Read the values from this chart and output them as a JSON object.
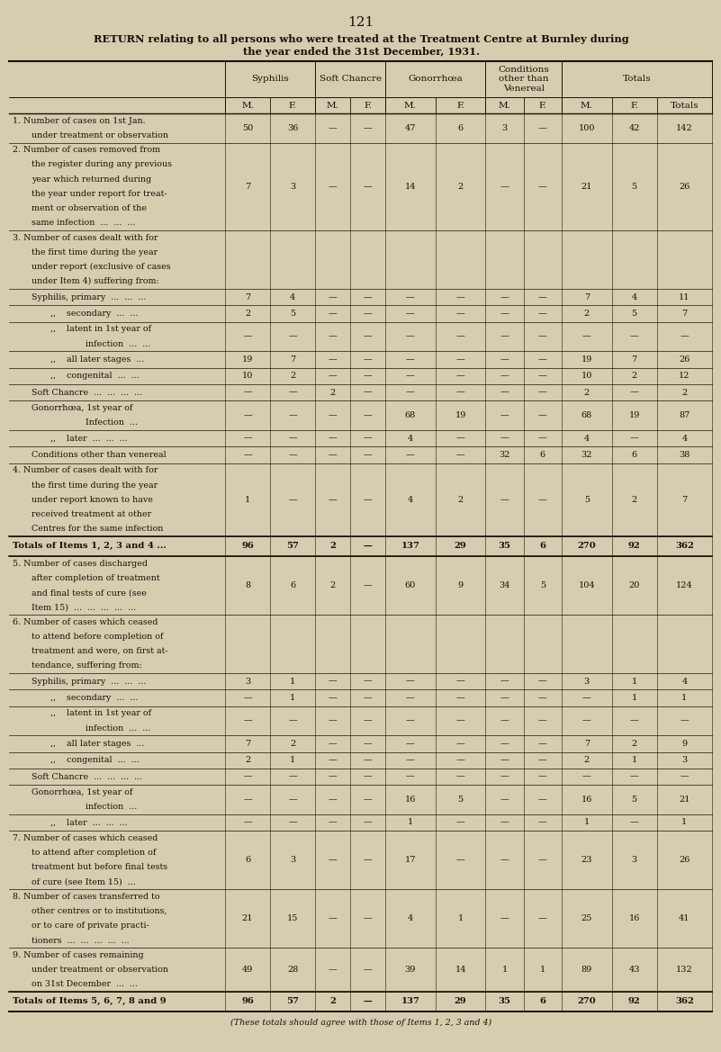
{
  "page_number": "121",
  "title_line1": "RETURN relating to all persons who were treated at the Treatment Centre at Burnley during",
  "title_line2": "the year ended the 31st December, 1931.",
  "bg_color": "#d6cdb0",
  "text_color": "#1a1008",
  "col_headers_row2": [
    "M.",
    "F.",
    "M.",
    "F.",
    "M.",
    "F.",
    "M.",
    "F.",
    "M.",
    "F.",
    "Totals"
  ],
  "group_labels": [
    "Syphilis",
    "Soft Chancre",
    "Gonorrhœa",
    "Conditions\nother than\nVenereal",
    "Totals"
  ],
  "rows": [
    {
      "label_parts": [
        [
          "1. Number of cases on 1st Jan.",
          0
        ],
        [
          "under treatment or observation",
          3
        ]
      ],
      "values": [
        "50",
        "36",
        "—",
        "—",
        "47",
        "6",
        "3",
        "—",
        "100",
        "42",
        "142"
      ],
      "bold": false,
      "separator_before": false,
      "separator_after": false
    },
    {
      "label_parts": [
        [
          "2. Number of cases removed from",
          0
        ],
        [
          "the register during any previous",
          3
        ],
        [
          "year which returned during",
          3
        ],
        [
          "the year under report for treat-",
          3
        ],
        [
          "ment or observation of the",
          3
        ],
        [
          "same infection  ...  ...  ...",
          3
        ]
      ],
      "values": [
        "7",
        "3",
        "—",
        "—",
        "14",
        "2",
        "—",
        "—",
        "21",
        "5",
        "26"
      ],
      "bold": false,
      "separator_before": false,
      "separator_after": false
    },
    {
      "label_parts": [
        [
          "3. Number of cases dealt with for",
          0
        ],
        [
          "the first time during the year",
          3
        ],
        [
          "under report (exclusive of cases",
          3
        ],
        [
          "under Item 4) suffering from:",
          3
        ]
      ],
      "values": [
        "",
        "",
        "",
        "",
        "",
        "",
        "",
        "",
        "",
        "",
        ""
      ],
      "bold": false,
      "separator_before": false,
      "separator_after": false
    },
    {
      "label_parts": [
        [
          "Syphilis, primary  ...  ...  ...",
          3
        ]
      ],
      "values": [
        "7",
        "4",
        "—",
        "—",
        "—",
        "—",
        "—",
        "—",
        "7",
        "4",
        "11"
      ],
      "bold": false,
      "separator_before": false,
      "separator_after": false
    },
    {
      "label_parts": [
        [
          ",,    secondary  ...  ...",
          6
        ]
      ],
      "values": [
        "2",
        "5",
        "—",
        "—",
        "—",
        "—",
        "—",
        "—",
        "2",
        "5",
        "7"
      ],
      "bold": false,
      "separator_before": false,
      "separator_after": false
    },
    {
      "label_parts": [
        [
          ",,    latent in 1st year of",
          6
        ],
        [
          "      infection  ...  ...",
          9
        ]
      ],
      "values": [
        "—",
        "—",
        "—",
        "—",
        "—",
        "—",
        "—",
        "—",
        "—",
        "—",
        "—"
      ],
      "bold": false,
      "separator_before": false,
      "separator_after": false
    },
    {
      "label_parts": [
        [
          ",,    all later stages  ...",
          6
        ]
      ],
      "values": [
        "19",
        "7",
        "—",
        "—",
        "—",
        "—",
        "—",
        "—",
        "19",
        "7",
        "26"
      ],
      "bold": false,
      "separator_before": false,
      "separator_after": false
    },
    {
      "label_parts": [
        [
          ",,    congenital  ...  ...",
          6
        ]
      ],
      "values": [
        "10",
        "2",
        "—",
        "—",
        "—",
        "—",
        "—",
        "—",
        "10",
        "2",
        "12"
      ],
      "bold": false,
      "separator_before": false,
      "separator_after": false
    },
    {
      "label_parts": [
        [
          "Soft Chancre  ...  ...  ...  ...",
          3
        ]
      ],
      "values": [
        "—",
        "—",
        "2",
        "—",
        "—",
        "—",
        "—",
        "—",
        "2",
        "—",
        "2"
      ],
      "bold": false,
      "separator_before": false,
      "separator_after": false
    },
    {
      "label_parts": [
        [
          "Gonorrhœa, 1st year of",
          3
        ],
        [
          "      Infection  ...",
          9
        ]
      ],
      "values": [
        "—",
        "—",
        "—",
        "—",
        "68",
        "19",
        "—",
        "—",
        "68",
        "19",
        "87"
      ],
      "bold": false,
      "separator_before": false,
      "separator_after": false
    },
    {
      "label_parts": [
        [
          ",,    later  ...  ...  ...",
          6
        ]
      ],
      "values": [
        "—",
        "—",
        "—",
        "—",
        "4",
        "—",
        "—",
        "—",
        "4",
        "—",
        "4"
      ],
      "bold": false,
      "separator_before": false,
      "separator_after": false
    },
    {
      "label_parts": [
        [
          "Conditions other than venereal",
          3
        ]
      ],
      "values": [
        "—",
        "—",
        "—",
        "—",
        "—",
        "—",
        "32",
        "6",
        "32",
        "6",
        "38"
      ],
      "bold": false,
      "separator_before": false,
      "separator_after": false
    },
    {
      "label_parts": [
        [
          "4. Number of cases dealt with for",
          0
        ],
        [
          "the first time during the year",
          3
        ],
        [
          "under report known to have",
          3
        ],
        [
          "received treatment at other",
          3
        ],
        [
          "Centres for the same infection",
          3
        ]
      ],
      "values": [
        "1",
        "—",
        "—",
        "—",
        "4",
        "2",
        "—",
        "—",
        "5",
        "2",
        "7"
      ],
      "bold": false,
      "separator_before": false,
      "separator_after": false
    },
    {
      "label_parts": [
        [
          "Totals of Items 1, 2, 3 and 4 ...",
          0
        ]
      ],
      "values": [
        "96",
        "57",
        "2",
        "—",
        "137",
        "29",
        "35",
        "6",
        "270",
        "92",
        "362"
      ],
      "bold": true,
      "separator_before": true,
      "separator_after": true
    },
    {
      "label_parts": [
        [
          "5. Number of cases discharged",
          0
        ],
        [
          "after completion of treatment",
          3
        ],
        [
          "and final tests of cure (see",
          3
        ],
        [
          "Item 15)  ...  ...  ...  ...  ...",
          3
        ]
      ],
      "values": [
        "8",
        "6",
        "2",
        "—",
        "60",
        "9",
        "34",
        "5",
        "104",
        "20",
        "124"
      ],
      "bold": false,
      "separator_before": false,
      "separator_after": false
    },
    {
      "label_parts": [
        [
          "6. Number of cases which ceased",
          0
        ],
        [
          "to attend before completion of",
          3
        ],
        [
          "treatment and were, on first at-",
          3
        ],
        [
          "tendance, suffering from:",
          3
        ]
      ],
      "values": [
        "",
        "",
        "",
        "",
        "",
        "",
        "",
        "",
        "",
        "",
        ""
      ],
      "bold": false,
      "separator_before": false,
      "separator_after": false
    },
    {
      "label_parts": [
        [
          "Syphilis, primary  ...  ...  ...",
          3
        ]
      ],
      "values": [
        "3",
        "1",
        "—",
        "—",
        "—",
        "—",
        "—",
        "—",
        "3",
        "1",
        "4"
      ],
      "bold": false,
      "separator_before": false,
      "separator_after": false
    },
    {
      "label_parts": [
        [
          ",,    secondary  ...  ...",
          6
        ]
      ],
      "values": [
        "—",
        "1",
        "—",
        "—",
        "—",
        "—",
        "—",
        "—",
        "—",
        "1",
        "1"
      ],
      "bold": false,
      "separator_before": false,
      "separator_after": false
    },
    {
      "label_parts": [
        [
          ",,    latent in 1st year of",
          6
        ],
        [
          "      infection  ...  ...",
          9
        ]
      ],
      "values": [
        "—",
        "—",
        "—",
        "—",
        "—",
        "—",
        "—",
        "—",
        "—",
        "—",
        "—"
      ],
      "bold": false,
      "separator_before": false,
      "separator_after": false
    },
    {
      "label_parts": [
        [
          ",,    all later stages  ...",
          6
        ]
      ],
      "values": [
        "7",
        "2",
        "—",
        "—",
        "—",
        "—",
        "—",
        "—",
        "7",
        "2",
        "9"
      ],
      "bold": false,
      "separator_before": false,
      "separator_after": false
    },
    {
      "label_parts": [
        [
          ",,    congenital  ...  ...",
          6
        ]
      ],
      "values": [
        "2",
        "1",
        "—",
        "—",
        "—",
        "—",
        "—",
        "—",
        "2",
        "1",
        "3"
      ],
      "bold": false,
      "separator_before": false,
      "separator_after": false
    },
    {
      "label_parts": [
        [
          "Soft Chancre  ...  ...  ...  ...",
          3
        ]
      ],
      "values": [
        "—",
        "—",
        "—",
        "—",
        "—",
        "—",
        "—",
        "—",
        "—",
        "—",
        "—"
      ],
      "bold": false,
      "separator_before": false,
      "separator_after": false
    },
    {
      "label_parts": [
        [
          "Gonorrhœa, 1st year of",
          3
        ],
        [
          "      infection  ...",
          9
        ]
      ],
      "values": [
        "—",
        "—",
        "—",
        "—",
        "16",
        "5",
        "—",
        "—",
        "16",
        "5",
        "21"
      ],
      "bold": false,
      "separator_before": false,
      "separator_after": false
    },
    {
      "label_parts": [
        [
          ",,    later  ...  ...  ...",
          6
        ]
      ],
      "values": [
        "—",
        "—",
        "—",
        "—",
        "1",
        "—",
        "—",
        "—",
        "1",
        "—",
        "1"
      ],
      "bold": false,
      "separator_before": false,
      "separator_after": false
    },
    {
      "label_parts": [
        [
          "7. Number of cases which ceased",
          0
        ],
        [
          "to attend after completion of",
          3
        ],
        [
          "treatment but before final tests",
          3
        ],
        [
          "of cure (see Item 15)  ...",
          3
        ]
      ],
      "values": [
        "6",
        "3",
        "—",
        "—",
        "17",
        "—",
        "—",
        "—",
        "23",
        "3",
        "26"
      ],
      "bold": false,
      "separator_before": false,
      "separator_after": false
    },
    {
      "label_parts": [
        [
          "8. Number of cases transferred to",
          0
        ],
        [
          "other centres or to institutions,",
          3
        ],
        [
          "or to care of private practi-",
          3
        ],
        [
          "tioners  ...  ...  ...  ...  ...",
          3
        ]
      ],
      "values": [
        "21",
        "15",
        "—",
        "—",
        "4",
        "1",
        "—",
        "—",
        "25",
        "16",
        "41"
      ],
      "bold": false,
      "separator_before": false,
      "separator_after": false
    },
    {
      "label_parts": [
        [
          "9. Number of cases remaining",
          0
        ],
        [
          "under treatment or observation",
          3
        ],
        [
          "on 31st December  ...  ...",
          3
        ]
      ],
      "values": [
        "49",
        "28",
        "—",
        "—",
        "39",
        "14",
        "1",
        "1",
        "89",
        "43",
        "132"
      ],
      "bold": false,
      "separator_before": false,
      "separator_after": false
    },
    {
      "label_parts": [
        [
          "Totals of Items 5, 6, 7, 8 and 9",
          0
        ]
      ],
      "values": [
        "96",
        "57",
        "2",
        "—",
        "137",
        "29",
        "35",
        "6",
        "270",
        "92",
        "362"
      ],
      "bold": true,
      "separator_before": true,
      "separator_after": true
    }
  ],
  "footer": "(These totals should agree with those of Items 1, 2, 3 and 4)"
}
